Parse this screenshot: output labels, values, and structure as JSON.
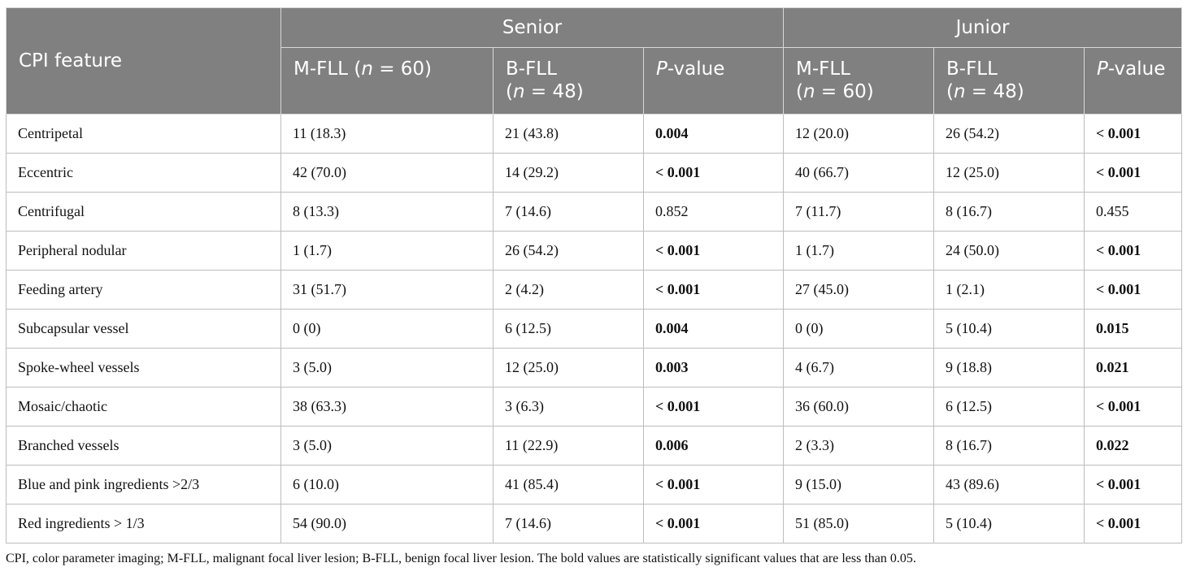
{
  "table": {
    "header": {
      "feature_label": "CPI feature",
      "group_senior": "Senior",
      "group_junior": "Junior",
      "sub": {
        "mfll_name": "M-FLL",
        "mfll_n": "(n = 60)",
        "bfll_name": "B-FLL",
        "bfll_n": "(n = 48)",
        "p_value": "P-value"
      }
    },
    "rows": [
      {
        "feature": "Centripetal",
        "s_m": "11 (18.3)",
        "s_b": "21 (43.8)",
        "s_p": "0.004",
        "s_p_bold": true,
        "j_m": "12 (20.0)",
        "j_b": "26 (54.2)",
        "j_p": "< 0.001",
        "j_p_bold": true
      },
      {
        "feature": "Eccentric",
        "s_m": "42 (70.0)",
        "s_b": "14 (29.2)",
        "s_p": "< 0.001",
        "s_p_bold": true,
        "j_m": "40 (66.7)",
        "j_b": "12 (25.0)",
        "j_p": "< 0.001",
        "j_p_bold": true
      },
      {
        "feature": "Centrifugal",
        "s_m": "8 (13.3)",
        "s_b": "7 (14.6)",
        "s_p": "0.852",
        "s_p_bold": false,
        "j_m": "7 (11.7)",
        "j_b": "8 (16.7)",
        "j_p": "0.455",
        "j_p_bold": false
      },
      {
        "feature": "Peripheral nodular",
        "s_m": "1 (1.7)",
        "s_b": "26 (54.2)",
        "s_p": "< 0.001",
        "s_p_bold": true,
        "j_m": "1 (1.7)",
        "j_b": "24 (50.0)",
        "j_p": "< 0.001",
        "j_p_bold": true
      },
      {
        "feature": "Feeding artery",
        "s_m": "31 (51.7)",
        "s_b": "2 (4.2)",
        "s_p": "< 0.001",
        "s_p_bold": true,
        "j_m": "27 (45.0)",
        "j_b": "1 (2.1)",
        "j_p": "< 0.001",
        "j_p_bold": true
      },
      {
        "feature": "Subcapsular vessel",
        "s_m": "0 (0)",
        "s_b": "6 (12.5)",
        "s_p": "0.004",
        "s_p_bold": true,
        "j_m": "0 (0)",
        "j_b": "5 (10.4)",
        "j_p": "0.015",
        "j_p_bold": true
      },
      {
        "feature": "Spoke-wheel vessels",
        "s_m": "3 (5.0)",
        "s_b": "12 (25.0)",
        "s_p": "0.003",
        "s_p_bold": true,
        "j_m": "4 (6.7)",
        "j_b": "9 (18.8)",
        "j_p": "0.021",
        "j_p_bold": true
      },
      {
        "feature": "Mosaic/chaotic",
        "s_m": "38 (63.3)",
        "s_b": "3 (6.3)",
        "s_p": "< 0.001",
        "s_p_bold": true,
        "j_m": "36 (60.0)",
        "j_b": "6 (12.5)",
        "j_p": "< 0.001",
        "j_p_bold": true
      },
      {
        "feature": "Branched vessels",
        "s_m": "3 (5.0)",
        "s_b": "11 (22.9)",
        "s_p": "0.006",
        "s_p_bold": true,
        "j_m": "2 (3.3)",
        "j_b": "8 (16.7)",
        "j_p": "0.022",
        "j_p_bold": true
      },
      {
        "feature": "Blue and pink ingredients >2/3",
        "s_m": "6 (10.0)",
        "s_b": "41 (85.4)",
        "s_p": "< 0.001",
        "s_p_bold": true,
        "j_m": "9 (15.0)",
        "j_b": "43 (89.6)",
        "j_p": "< 0.001",
        "j_p_bold": true
      },
      {
        "feature": "Red ingredients > 1/3",
        "s_m": "54 (90.0)",
        "s_b": "7 (14.6)",
        "s_p": "< 0.001",
        "s_p_bold": true,
        "j_m": "51 (85.0)",
        "j_b": "5 (10.4)",
        "j_p": "< 0.001",
        "j_p_bold": true
      }
    ]
  },
  "footnote": "CPI, color parameter imaging; M-FLL, malignant focal liver lesion; B-FLL, benign focal liver lesion.  The bold values are statistically significant values that are less than 0.05.",
  "colors": {
    "header_bg": "#808080",
    "header_text": "#ffffff",
    "grid": "#bdbdbd"
  }
}
